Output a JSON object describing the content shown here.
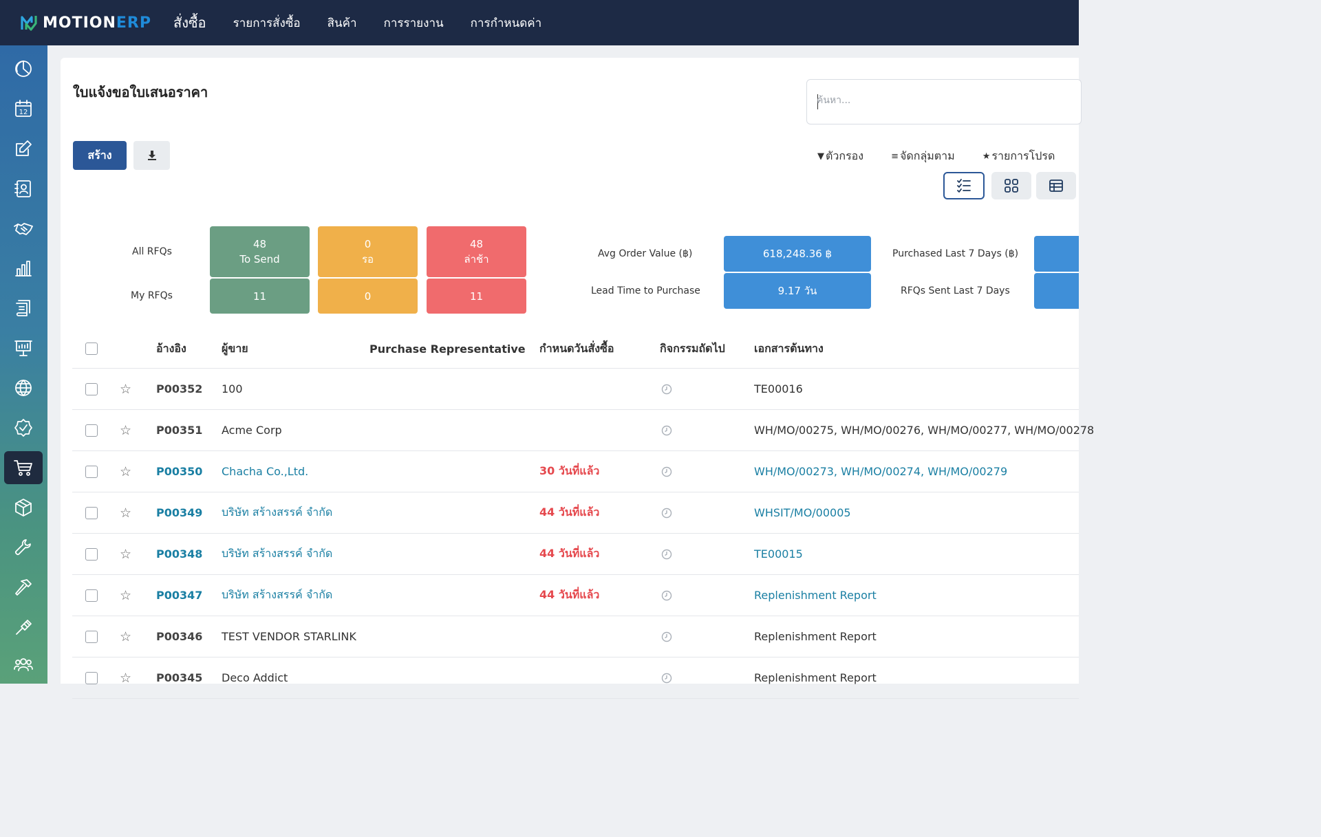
{
  "brand": {
    "name_main": "MOTION",
    "name_accent": "ERP"
  },
  "topnav": {
    "app_name": "สั่งซื้อ",
    "items": [
      "รายการสั่งซื้อ",
      "สินค้า",
      "การรายงาน",
      "การกำหนดค่า"
    ]
  },
  "sidebar": {
    "items": [
      {
        "icon": "dashboard-icon"
      },
      {
        "icon": "calendar-icon",
        "text": "12"
      },
      {
        "icon": "edit-icon"
      },
      {
        "icon": "contacts-icon"
      },
      {
        "icon": "handshake-icon"
      },
      {
        "icon": "chart-bar-icon"
      },
      {
        "icon": "accounting-icon"
      },
      {
        "icon": "presentation-icon"
      },
      {
        "icon": "globe-icon"
      },
      {
        "icon": "quality-badge-icon"
      },
      {
        "icon": "cart-icon",
        "active": true
      },
      {
        "icon": "box-icon"
      },
      {
        "icon": "wrench-icon"
      },
      {
        "icon": "hammer-icon"
      },
      {
        "icon": "tool-icon"
      },
      {
        "icon": "team-icon"
      }
    ]
  },
  "page": {
    "title": "ใบแจ้งขอใบเสนอราคา",
    "search_placeholder": "ค้นหา...",
    "create_label": "สร้าง",
    "filter_label": "ตัวกรอง",
    "groupby_label": "จัดกลุ่มตาม",
    "favorites_label": "รายการโปรด",
    "filter_glyph": "▼",
    "groupby_glyph": "≡",
    "favorites_glyph": "★"
  },
  "dashboard": {
    "all_rfqs_label": "All RFQs",
    "my_rfqs_label": "My RFQs",
    "all_to_send": "48",
    "all_to_send_label": "To Send",
    "all_waiting": "0",
    "all_waiting_label": "รอ",
    "all_late": "48",
    "all_late_label": "ล่าช้า",
    "my_to_send": "11",
    "my_waiting": "0",
    "my_late": "11",
    "avg_order_label": "Avg Order Value (฿)",
    "avg_order_value": "618,248.36 ฿",
    "lead_time_label": "Lead Time to Purchase",
    "lead_time_value": "9.17 วัน",
    "purchased_7_label": "Purchased Last 7 Days (฿)",
    "rfqs_sent_7_label": "RFQs Sent Last 7 Days",
    "colors": {
      "green": "#6b9e83",
      "yellow": "#f0b04a",
      "red": "#f06b6d",
      "blue": "#3f8fd8"
    }
  },
  "table": {
    "columns": [
      "อ้างอิง",
      "ผู้ขาย",
      "Purchase Representative",
      "กำหนดวันสั่งซื้อ",
      "กิจกรรมถัดไป",
      "เอกสารต้นทาง"
    ],
    "rows": [
      {
        "ref": "P00352",
        "vendor": "100",
        "deadline": "",
        "source": "TE00016",
        "highlight": false
      },
      {
        "ref": "P00351",
        "vendor": "Acme Corp",
        "deadline": "",
        "source": "WH/MO/00275, WH/MO/00276, WH/MO/00277, WH/MO/00278",
        "highlight": false
      },
      {
        "ref": "P00350",
        "vendor": "Chacha Co.,Ltd.",
        "deadline": "30 วันที่แล้ว",
        "source": "WH/MO/00273, WH/MO/00274, WH/MO/00279",
        "highlight": true
      },
      {
        "ref": "P00349",
        "vendor": "บริษัท สร้างสรรค์ จำกัด",
        "deadline": "44 วันที่แล้ว",
        "source": "WHSIT/MO/00005",
        "highlight": true
      },
      {
        "ref": "P00348",
        "vendor": "บริษัท สร้างสรรค์ จำกัด",
        "deadline": "44 วันที่แล้ว",
        "source": "TE00015",
        "highlight": true
      },
      {
        "ref": "P00347",
        "vendor": "บริษัท สร้างสรรค์ จำกัด",
        "deadline": "44 วันที่แล้ว",
        "source": "Replenishment Report",
        "highlight": true
      },
      {
        "ref": "P00346",
        "vendor": "TEST VENDOR STARLINK",
        "deadline": "",
        "source": "Replenishment Report",
        "highlight": false
      },
      {
        "ref": "P00345",
        "vendor": "Deco Addict",
        "deadline": "",
        "source": "Replenishment Report",
        "highlight": false
      }
    ]
  }
}
